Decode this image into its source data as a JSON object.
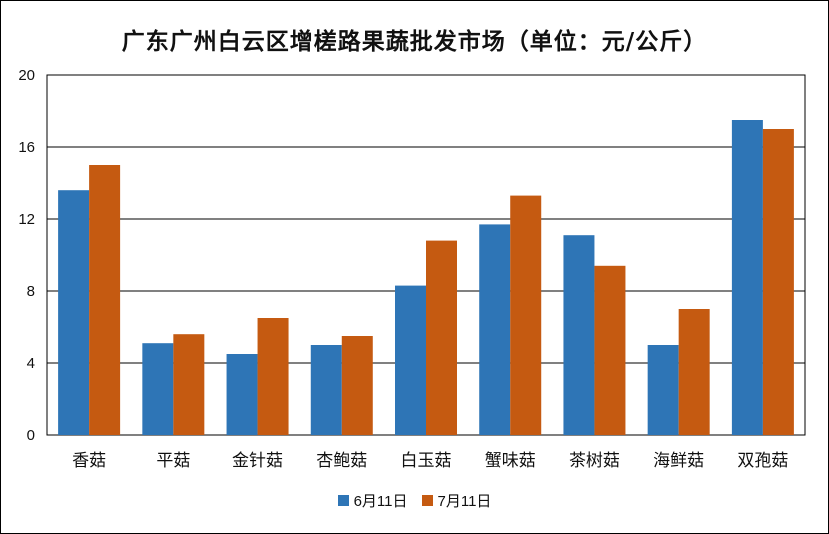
{
  "chart_data": {
    "type": "bar",
    "title": "广东广州白云区增槎路果蔬批发市场（单位：元/公斤）",
    "categories": [
      "香菇",
      "平菇",
      "金针菇",
      "杏鲍菇",
      "白玉菇",
      "蟹味菇",
      "茶树菇",
      "海鲜菇",
      "双孢菇"
    ],
    "series": [
      {
        "name": "6月11日",
        "color": "#2E75B6",
        "values": [
          13.6,
          5.1,
          4.5,
          5.0,
          8.3,
          11.7,
          11.1,
          5.0,
          17.5
        ]
      },
      {
        "name": "7月11日",
        "color": "#C55A11",
        "values": [
          15.0,
          5.6,
          6.5,
          5.5,
          10.8,
          13.3,
          9.4,
          7.0,
          17.0
        ]
      }
    ],
    "ylim": [
      0,
      20
    ],
    "yticks": [
      0,
      4,
      8,
      12,
      16,
      20
    ],
    "grid": true,
    "legend_position": "bottom"
  }
}
